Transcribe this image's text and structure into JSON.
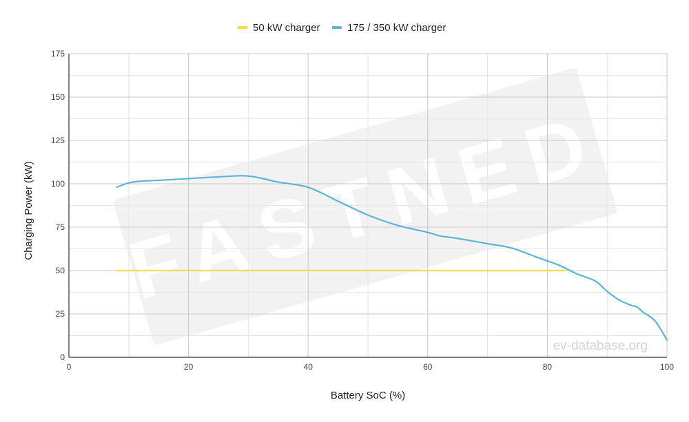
{
  "chart_data": {
    "type": "line",
    "xlabel": "Battery SoC (%)",
    "ylabel": "Charging Power (kW)",
    "xlim": [
      0,
      100
    ],
    "ylim": [
      0,
      175
    ],
    "x_ticks": [
      0,
      20,
      40,
      60,
      80,
      100
    ],
    "y_ticks": [
      0,
      25,
      50,
      75,
      100,
      125,
      150,
      175
    ],
    "x_tick_labels": [
      "0",
      "20",
      "40",
      "60",
      "80",
      "100"
    ],
    "y_tick_labels": [
      "0",
      "25",
      "50",
      "75",
      "100",
      "125",
      "150",
      "175"
    ],
    "grid": true,
    "legend_position": "top-center",
    "series": [
      {
        "name": "50 kW charger",
        "color": "#f4dc44",
        "points": [
          [
            8,
            50
          ],
          [
            83,
            50
          ]
        ]
      },
      {
        "name": "175 / 350 kW charger",
        "color": "#5ab4d6",
        "points": [
          [
            8,
            98
          ],
          [
            10,
            100.5
          ],
          [
            12,
            101.5
          ],
          [
            15,
            102
          ],
          [
            20,
            103
          ],
          [
            25,
            104
          ],
          [
            30,
            104.5
          ],
          [
            35,
            101
          ],
          [
            40,
            98
          ],
          [
            45,
            90
          ],
          [
            50,
            82
          ],
          [
            55,
            76
          ],
          [
            60,
            72
          ],
          [
            62,
            70
          ],
          [
            65,
            68.5
          ],
          [
            70,
            65.5
          ],
          [
            74,
            63
          ],
          [
            78,
            58
          ],
          [
            82,
            53
          ],
          [
            85,
            48
          ],
          [
            88,
            44
          ],
          [
            90,
            38
          ],
          [
            92,
            33
          ],
          [
            94,
            30
          ],
          [
            95,
            29
          ],
          [
            96,
            26
          ],
          [
            98,
            21
          ],
          [
            100,
            10
          ]
        ]
      }
    ],
    "watermark": "FASTNED",
    "source": "ev-database.org"
  }
}
